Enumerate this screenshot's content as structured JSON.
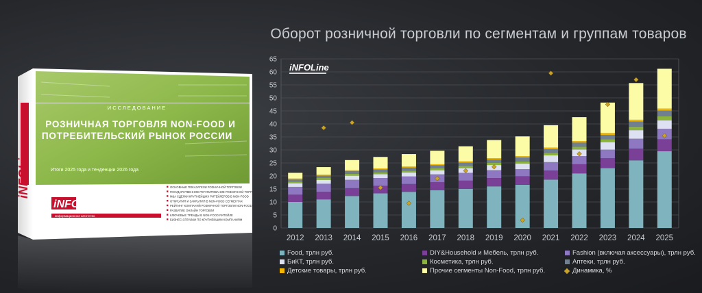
{
  "report": {
    "label": "ИССЛЕДОВАНИЕ",
    "title_line1": "РОЗНИЧНАЯ ТОРГОВЛЯ NON-FOOD И",
    "title_line2": "ПОТРЕБИТЕЛЬСКИЙ РЫНОК РОССИИ",
    "subtitle": "Итоги 2025 года и тенденции 2026 года",
    "brand": "iNFOLine",
    "brand_tagline": "информационное агентство",
    "spine_brand": "iNFOLine",
    "contents": [
      "ОСНОВНЫЕ ПОКАЗАТЕЛИ РОЗНИЧНОЙ ТОРГОВЛИ",
      "ГОСУДАРСТВЕННОЕ РЕГУЛИРОВАНИЕ РОЗНИЧНОЙ ТОРГОВЛИ",
      "M&A СДЕЛКИ КРУПНЕЙШИХ РИТЕЙЛЕРОВ В NON-FOOD",
      "ОТКРЫТИЯ И ЗАКРЫТИЯ В NON-FOOD СЕГМЕНТАХ",
      "РЕЙТИНГ КОМПАНИЙ РОЗНИЧНОЙ ТОРГОВЛИ NON-FOOD",
      "РАЗВИТИЕ ОНЛАЙН ТОРГОВЛИ",
      "КЛЮЧЕВЫЕ ТРЕНДЫ В NON-FOOD РИТЕЙЛЕ",
      "БИЗНЕС-СПРАВКИ ПО КРУПНЕЙШИМ КОМПАНИЯМ"
    ]
  },
  "colors": {
    "food": "#7fb3bd",
    "diy": "#7a3f96",
    "fashion": "#8e78c2",
    "bikt": "#dde1f2",
    "kosm": "#8db33f",
    "apteki": "#708090",
    "detskie": "#f2b705",
    "prochie": "#fdfca6",
    "dinamika": "#c9a227"
  },
  "chart_data": {
    "type": "bar",
    "title": "Оборот розничной торговли по сегментам и группам товаров",
    "watermark": "iNFOLine",
    "categories": [
      "2012",
      "2013",
      "2014",
      "2015",
      "2016",
      "2017",
      "2018",
      "2019",
      "2020",
      "2021",
      "2022",
      "2023",
      "2024",
      "2025"
    ],
    "ylim": [
      0,
      65
    ],
    "yticks": [
      0,
      5,
      10,
      15,
      20,
      25,
      30,
      35,
      40,
      45,
      50,
      55,
      60,
      65
    ],
    "grid": true,
    "legend_position": "bottom",
    "series": [
      {
        "name": "Food, трлн руб.",
        "key": "food",
        "values": [
          10.0,
          11.0,
          12.3,
          13.3,
          13.9,
          14.5,
          15.0,
          16.0,
          16.6,
          18.6,
          21.0,
          23.0,
          26.0,
          29.5
        ]
      },
      {
        "name": "DIY&Household и Мебель, трлн руб.",
        "key": "diy",
        "values": [
          2.8,
          2.9,
          3.0,
          2.9,
          3.0,
          3.1,
          3.2,
          3.2,
          3.3,
          3.5,
          3.5,
          3.8,
          4.5,
          4.6
        ]
      },
      {
        "name": "Fashion (включая аксессуары), трлн руб.",
        "key": "fashion",
        "values": [
          3.0,
          3.1,
          3.2,
          3.0,
          2.9,
          3.0,
          3.0,
          3.0,
          2.7,
          3.2,
          3.1,
          3.3,
          3.8,
          4.0
        ]
      },
      {
        "name": "БиКТ, трлн руб.",
        "key": "bikt",
        "values": [
          1.4,
          1.5,
          1.6,
          1.5,
          1.5,
          1.6,
          1.8,
          2.0,
          2.2,
          2.6,
          2.6,
          2.9,
          3.3,
          3.3
        ]
      },
      {
        "name": "Косметика, трлн руб.",
        "key": "kosm",
        "values": [
          0.6,
          0.7,
          0.7,
          0.7,
          0.7,
          0.7,
          0.8,
          0.8,
          0.8,
          0.9,
          1.0,
          1.1,
          1.4,
          1.5
        ]
      },
      {
        "name": "Аптеки, трлн руб.",
        "key": "apteki",
        "values": [
          0.8,
          0.9,
          1.0,
          1.1,
          1.2,
          1.2,
          1.3,
          1.3,
          1.5,
          1.5,
          1.6,
          1.7,
          1.9,
          2.2
        ]
      },
      {
        "name": "Детские товары, трлн руб.",
        "key": "detskie",
        "values": [
          0.4,
          0.4,
          0.4,
          0.4,
          0.4,
          0.4,
          0.5,
          0.5,
          0.5,
          0.6,
          0.6,
          0.7,
          0.7,
          0.8
        ]
      },
      {
        "name": "Прочие сегменты Non-Food, трлн руб.",
        "key": "prochie",
        "values": [
          2.2,
          2.9,
          3.9,
          4.4,
          4.8,
          5.2,
          5.8,
          7.0,
          7.6,
          8.6,
          9.2,
          11.7,
          14.1,
          15.3
        ]
      }
    ],
    "dinamika": {
      "name": "Динамика, %",
      "values": [
        38.5,
        40.5,
        15.5,
        9.5,
        19.0,
        22.0,
        23.5,
        3.0,
        59.5,
        28.5,
        47.5,
        57.0,
        35.5
      ]
    }
  }
}
